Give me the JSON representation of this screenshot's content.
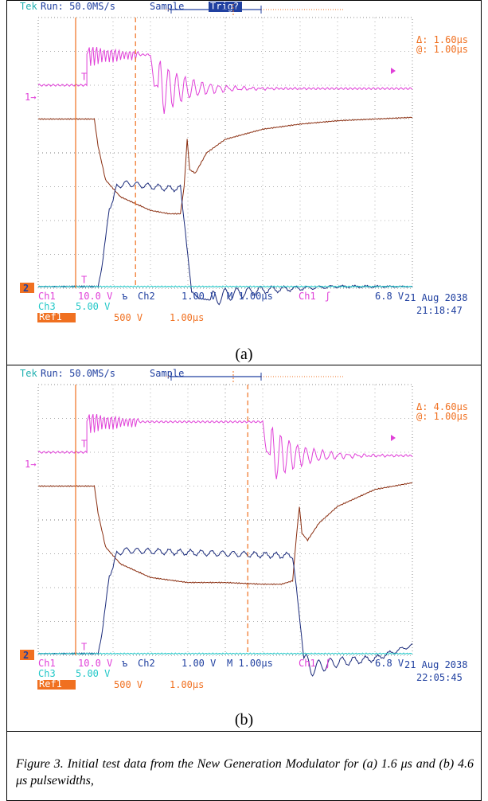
{
  "colors": {
    "ch1": "#e040d8",
    "ch2": "#1a2a7a",
    "ch3": "#22c8c8",
    "ref1": "#8a2e10",
    "cursor": "#e86020",
    "orange": "#f07020",
    "blue": "#3050c0"
  },
  "panels": [
    {
      "sublabel": "(a)",
      "status": {
        "brand": "Tek",
        "run": "Run: 50.0MS/s",
        "mode": "Sample",
        "trig": "Trig?"
      },
      "cursor_readout": {
        "delta": "Δ: 1.60μs",
        "at": "@: 1.00μs"
      },
      "markers": {
        "ch1": "1→",
        "ch2": "2",
        "t1": "T",
        "t2": "T"
      },
      "settings": {
        "ch1": "Ch1",
        "ch1_scale": "10.0 V",
        "ch2": "Ch2",
        "ch2_scale": "1.00 V",
        "timebase": "M 1.00μs",
        "trig_src": "Ch1",
        "trig_slope": "ʃ",
        "trig_level": "6.8 V",
        "ch3": "Ch3",
        "ch3_scale": "5.00 V",
        "ref1": "Ref1",
        "ref1_scale": "500 V",
        "ref1_time": "1.00μs",
        "date": "21 Aug 2038",
        "time": "21:18:47"
      },
      "cursors_div": {
        "solid": 1.0,
        "dashed": 2.6
      }
    },
    {
      "sublabel": "(b)",
      "status": {
        "brand": "Tek",
        "run": "Run: 50.0MS/s",
        "mode": "Sample",
        "trig": ""
      },
      "cursor_readout": {
        "delta": "Δ: 4.60μs",
        "at": "@: 1.00μs"
      },
      "markers": {
        "ch1": "1→",
        "ch2": "2",
        "t1": "T",
        "t2": "T"
      },
      "settings": {
        "ch1": "Ch1",
        "ch1_scale": "10.0 V",
        "ch2": "Ch2",
        "ch2_scale": "1.00 V",
        "timebase": "M 1.00μs",
        "trig_src": "Ch1",
        "trig_slope": "ʃ",
        "trig_level": "6.8 V",
        "ch3": "Ch3",
        "ch3_scale": "5.00 V",
        "ref1": "Ref1",
        "ref1_scale": "500 V",
        "ref1_time": "1.00μs",
        "date": "21 Aug 2038",
        "time": "22:05:45"
      },
      "cursors_div": {
        "solid": 1.0,
        "dashed": 5.6
      }
    }
  ],
  "caption": "Figure 3.  Initial test data from the New Generation Modulator for (a) 1.6 μs and (b) 4.6 μs pulsewidths,",
  "chart_data": [
    {
      "type": "line",
      "xlabel": "",
      "ylabel": "",
      "grid": true,
      "xlim_div": [
        0,
        10
      ],
      "ylim_div": [
        0,
        8
      ],
      "series": [
        {
          "channel": "Ch1",
          "x_div": [
            0,
            1.0,
            1.3,
            1.3,
            3.0,
            3.1,
            3.3,
            5.0,
            10.0
          ],
          "y_div": [
            6.0,
            6.0,
            6.0,
            6.9,
            6.9,
            6.0,
            5.9,
            5.9,
            5.9
          ]
        },
        {
          "channel": "Ref1",
          "x_div": [
            0,
            1.5,
            1.6,
            1.8,
            2.2,
            3.0,
            3.5,
            3.8,
            3.9,
            3.98,
            4.05,
            4.2,
            4.5,
            5.0,
            6.0,
            7.0,
            8.0,
            9.0,
            10.0
          ],
          "y_div": [
            5.0,
            5.0,
            4.2,
            3.2,
            2.7,
            2.3,
            2.2,
            2.2,
            3.0,
            4.4,
            3.5,
            3.4,
            4.0,
            4.4,
            4.7,
            4.85,
            4.95,
            5.0,
            5.05
          ]
        },
        {
          "channel": "Ch2",
          "x_div": [
            0,
            1.6,
            1.7,
            1.9,
            2.0,
            2.1,
            2.3,
            3.5,
            3.8,
            3.9,
            4.1,
            4.3,
            4.6,
            5.0,
            6.0,
            7.0,
            8.0,
            10.0
          ],
          "y_div": [
            0.05,
            0.05,
            0.6,
            2.4,
            2.6,
            3.0,
            3.1,
            2.95,
            2.95,
            2.0,
            -0.1,
            -0.3,
            -0.35,
            -0.2,
            -0.05,
            0.0,
            0.05,
            0.05
          ]
        },
        {
          "channel": "Ch3",
          "x_div": [
            0,
            10
          ],
          "y_div": [
            0.05,
            0.05
          ]
        }
      ]
    },
    {
      "type": "line",
      "xlabel": "",
      "ylabel": "",
      "grid": true,
      "xlim_div": [
        0,
        10
      ],
      "ylim_div": [
        0,
        8
      ],
      "series": [
        {
          "channel": "Ch1",
          "x_div": [
            0,
            1.0,
            1.3,
            1.3,
            6.0,
            6.1,
            6.3,
            10.0
          ],
          "y_div": [
            6.0,
            6.0,
            6.0,
            6.9,
            6.9,
            6.0,
            5.9,
            5.9
          ]
        },
        {
          "channel": "Ref1",
          "x_div": [
            0,
            1.5,
            1.6,
            1.8,
            2.2,
            3.0,
            4.0,
            5.0,
            6.0,
            6.5,
            6.8,
            6.9,
            6.98,
            7.05,
            7.2,
            7.5,
            8.0,
            9.0,
            10.0
          ],
          "y_div": [
            5.0,
            5.0,
            4.2,
            3.2,
            2.7,
            2.3,
            2.15,
            2.15,
            2.1,
            2.1,
            2.2,
            3.5,
            4.4,
            3.6,
            3.4,
            3.9,
            4.4,
            4.9,
            5.1
          ]
        },
        {
          "channel": "Ch2",
          "x_div": [
            0,
            1.6,
            1.7,
            1.9,
            2.0,
            2.1,
            2.3,
            6.5,
            6.8,
            6.9,
            7.1,
            7.3,
            7.6,
            8.0,
            9.0,
            10.0
          ],
          "y_div": [
            0.05,
            0.05,
            0.6,
            2.4,
            2.6,
            3.0,
            3.1,
            2.95,
            2.95,
            2.0,
            -0.1,
            -0.4,
            -0.3,
            -0.2,
            -0.1,
            0.3
          ]
        },
        {
          "channel": "Ch3",
          "x_div": [
            0,
            10
          ],
          "y_div": [
            0.05,
            0.05
          ]
        }
      ]
    }
  ]
}
